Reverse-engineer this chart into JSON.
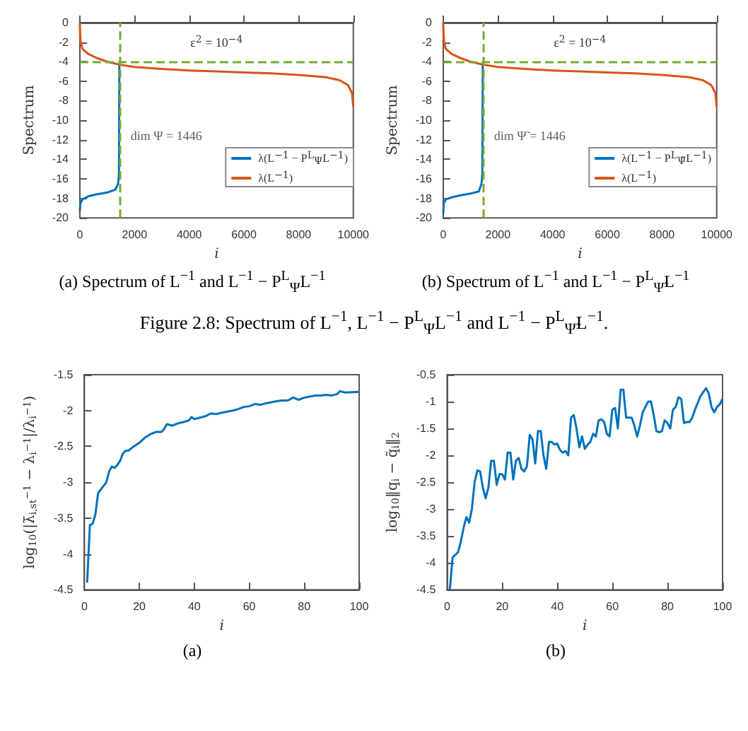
{
  "chart_data": [
    {
      "type": "line",
      "xlabel": "i",
      "ylabel": "Spectrum",
      "xlim": [
        0,
        10000
      ],
      "xticks": [
        0,
        2000,
        4000,
        6000,
        8000,
        10000
      ],
      "ylim": [
        -20,
        0
      ],
      "yticks": [
        -20,
        -18,
        -16,
        -14,
        -12,
        -10,
        -8,
        -6,
        -4,
        -2,
        0
      ],
      "grid": false,
      "legend": "bottom right",
      "marker": "none",
      "series": [
        {
          "name": "λ(L$^{−1}$ − P$^{L}$$_{Ψ}$L$^{−1}$)",
          "color": "#0072bd",
          "x": [
            0,
            20,
            100,
            300,
            600,
            1000,
            1300,
            1400,
            1430,
            1446
          ],
          "values": [
            -19.3,
            -18.5,
            -18.1,
            -17.8,
            -17.6,
            -17.4,
            -17.1,
            -16.5,
            -15.5,
            -4.3
          ]
        },
        {
          "name": "λ(L$^{−1}$)",
          "color": "#d95319",
          "x": [
            0,
            10,
            30,
            100,
            300,
            600,
            1000,
            1446,
            2000,
            3000,
            4000,
            5000,
            6000,
            7000,
            8000,
            9000,
            9500,
            9800,
            9950,
            10000
          ],
          "values": [
            0,
            -1,
            -2,
            -2.7,
            -3.2,
            -3.6,
            -4,
            -4.3,
            -4.55,
            -4.75,
            -4.9,
            -5.0,
            -5.1,
            -5.2,
            -5.35,
            -5.6,
            -5.9,
            -6.4,
            -7.2,
            -8.6
          ]
        }
      ],
      "ref_lines": [
        {
          "axis": "y",
          "value": -4,
          "color": "#77ac30",
          "line_style": "dashed",
          "label": "ε$^{2}$ = 10$^{−4}$"
        },
        {
          "axis": "x",
          "value": 1446,
          "color": "#77ac30",
          "line_style": "dashed",
          "label": "dim Ψ = 1446"
        }
      ],
      "annotations": [
        "(a) Spectrum of L$^{−1}$ and L$^{−1}$ − P$^{L}$$_{Ψ}$L$^{−1}$"
      ]
    },
    {
      "type": "line",
      "xlabel": "i",
      "ylabel": "Spectrum",
      "xlim": [
        0,
        10000
      ],
      "xticks": [
        0,
        2000,
        4000,
        6000,
        8000,
        10000
      ],
      "ylim": [
        -20,
        0
      ],
      "yticks": [
        -20,
        -18,
        -16,
        -14,
        -12,
        -10,
        -8,
        -6,
        -4,
        -2,
        0
      ],
      "grid": false,
      "legend": "bottom right",
      "marker": "none",
      "series": [
        {
          "name": "λ(L$^{−1}$ − P$^{L}$$_{Ψ̃}$L$^{−1}$)",
          "color": "#0072bd",
          "x": [
            0,
            20,
            100,
            300,
            600,
            1000,
            1300,
            1400,
            1430,
            1446
          ],
          "values": [
            -19.6,
            -18.5,
            -18.1,
            -17.9,
            -17.7,
            -17.5,
            -17.3,
            -16.5,
            -15.5,
            -4.3
          ]
        },
        {
          "name": "λ(L$^{−1}$)",
          "color": "#d95319",
          "x": [
            0,
            10,
            30,
            100,
            300,
            600,
            1000,
            1446,
            2000,
            3000,
            4000,
            5000,
            6000,
            7000,
            8000,
            9000,
            9500,
            9800,
            9950,
            10000
          ],
          "values": [
            0,
            -1,
            -2,
            -2.7,
            -3.2,
            -3.6,
            -4,
            -4.3,
            -4.55,
            -4.75,
            -4.9,
            -5.0,
            -5.1,
            -5.2,
            -5.35,
            -5.6,
            -5.9,
            -6.4,
            -7.2,
            -8.6
          ]
        }
      ],
      "ref_lines": [
        {
          "axis": "y",
          "value": -4,
          "color": "#77ac30",
          "line_style": "dashed",
          "label": "ε$^{2}$ = 10$^{−4}$"
        },
        {
          "axis": "x",
          "value": 1446,
          "color": "#77ac30",
          "line_style": "dashed",
          "label": "dim Ψ̃ = 1446"
        }
      ],
      "annotations": [
        "(b) Spectrum of L$^{−1}$ and L$^{−1}$ − P$^{L}$$_{Ψ̃}$L$^{−1}$",
        "Figure 2.8: Spectrum of L$^{−1}$, L$^{−1}$ − P$^{L}$$_{Ψ}$L$^{−1}$ and L$^{−1}$ − P$^{L}$$_{Ψ̃}$L$^{−1}$."
      ]
    },
    {
      "type": "line",
      "xlabel": "i",
      "ylabel": "log$_{10}$(|λ̄$_{i,st}$$^{−1}$ − λ$_{i}$$^{−1}$|/λ$_{i}$$^{−1}$)",
      "xlim": [
        0,
        100
      ],
      "xticks": [
        0,
        20,
        40,
        60,
        80,
        100
      ],
      "ylim": [
        -4.5,
        -1.5
      ],
      "yticks": [
        -4.5,
        -4,
        -3.5,
        -3,
        -2.5,
        -2,
        -1.5
      ],
      "grid": false,
      "marker": "none",
      "series": [
        {
          "color": "#0072bd",
          "x": [
            1,
            2,
            3,
            4,
            5,
            6,
            7,
            8,
            9,
            10,
            11,
            12,
            13,
            14,
            15,
            16,
            18,
            20,
            22,
            24,
            26,
            28,
            29,
            30,
            32,
            34,
            36,
            38,
            39,
            40,
            44,
            46,
            48,
            50,
            54,
            56,
            58,
            60,
            62,
            64,
            66,
            70,
            72,
            74,
            76,
            78,
            80,
            84,
            86,
            88,
            90,
            92,
            93,
            95,
            100
          ],
          "values": [
            -4.4,
            -3.6,
            -3.58,
            -3.45,
            -3.15,
            -3.1,
            -3.05,
            -3.0,
            -2.85,
            -2.78,
            -2.8,
            -2.76,
            -2.7,
            -2.6,
            -2.56,
            -2.56,
            -2.5,
            -2.45,
            -2.38,
            -2.33,
            -2.3,
            -2.3,
            -2.26,
            -2.19,
            -2.21,
            -2.18,
            -2.16,
            -2.14,
            -2.09,
            -2.12,
            -2.08,
            -2.04,
            -2.05,
            -2.03,
            -2.0,
            -1.98,
            -1.95,
            -1.94,
            -1.91,
            -1.92,
            -1.9,
            -1.87,
            -1.86,
            -1.86,
            -1.82,
            -1.85,
            -1.82,
            -1.79,
            -1.79,
            -1.78,
            -1.79,
            -1.77,
            -1.73,
            -1.75,
            -1.74
          ]
        }
      ],
      "annotations": [
        "(a)"
      ]
    },
    {
      "type": "line",
      "xlabel": "i",
      "ylabel": "log$_{10}$‖q$_{i}$ − q̃$_{i}$‖$_{2}$",
      "xlim": [
        0,
        100
      ],
      "xticks": [
        0,
        20,
        40,
        60,
        80,
        100
      ],
      "ylim": [
        -4.5,
        -0.5
      ],
      "yticks": [
        -4.5,
        -4,
        -3.5,
        -3,
        -2.5,
        -2,
        -1.5,
        -1,
        -0.5
      ],
      "grid": false,
      "marker": "none",
      "series": [
        {
          "color": "#0072bd",
          "x": [
            1,
            2,
            3,
            4,
            5,
            6,
            7,
            8,
            9,
            10,
            11,
            12,
            13,
            14,
            15,
            16,
            17,
            18,
            19,
            20,
            21,
            22,
            23,
            24,
            25,
            26,
            27,
            28,
            29,
            30,
            31,
            32,
            33,
            34,
            35,
            36,
            37,
            38,
            39,
            40,
            41,
            42,
            43,
            44,
            45,
            46,
            47,
            48,
            49,
            50,
            51,
            52,
            53,
            54,
            55,
            56,
            57,
            58,
            59,
            60,
            61,
            62,
            63,
            64,
            65,
            66,
            67,
            68,
            69,
            70,
            71,
            72,
            73,
            74,
            75,
            76,
            77,
            78,
            79,
            80,
            81,
            82,
            83,
            84,
            85,
            86,
            87,
            88,
            89,
            90,
            92,
            94,
            95,
            96,
            97,
            98,
            99,
            100
          ],
          "values": [
            -4.5,
            -3.9,
            -3.85,
            -3.8,
            -3.6,
            -3.35,
            -3.15,
            -3.25,
            -3.0,
            -2.5,
            -2.28,
            -2.3,
            -2.6,
            -2.8,
            -2.6,
            -2.1,
            -2.1,
            -2.55,
            -2.35,
            -2.35,
            -2.45,
            -1.95,
            -1.95,
            -2.45,
            -2.1,
            -2.05,
            -2.25,
            -2.3,
            -2.2,
            -1.62,
            -1.7,
            -2.15,
            -1.55,
            -1.55,
            -2.0,
            -2.25,
            -1.75,
            -1.75,
            -1.8,
            -1.78,
            -1.9,
            -1.95,
            -1.92,
            -2.0,
            -1.3,
            -1.25,
            -1.5,
            -1.85,
            -1.65,
            -1.88,
            -1.8,
            -1.75,
            -1.6,
            -1.65,
            -1.35,
            -1.33,
            -1.38,
            -1.6,
            -1.65,
            -1.15,
            -1.12,
            -1.5,
            -0.78,
            -0.78,
            -1.3,
            -1.3,
            -1.3,
            -1.45,
            -1.65,
            -1.45,
            -1.2,
            -1.1,
            -1.0,
            -1.0,
            -1.25,
            -1.55,
            -1.57,
            -1.55,
            -1.35,
            -1.4,
            -1.5,
            -1.15,
            -1.1,
            -0.92,
            -0.95,
            -1.4,
            -1.38,
            -1.38,
            -1.3,
            -1.15,
            -0.9,
            -0.75,
            -0.85,
            -1.1,
            -1.2,
            -1.1,
            -1.05,
            -0.95
          ]
        }
      ],
      "annotations": [
        "(b)"
      ]
    }
  ]
}
